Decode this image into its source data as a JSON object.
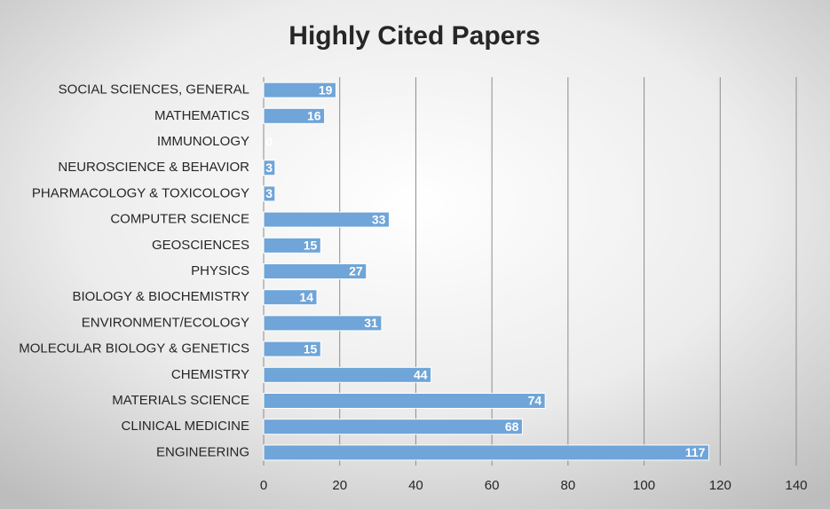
{
  "chart_data": {
    "type": "bar",
    "orientation": "horizontal",
    "title": "Highly Cited Papers",
    "categories": [
      "SOCIAL SCIENCES, GENERAL",
      "MATHEMATICS",
      "IMMUNOLOGY",
      "NEUROSCIENCE & BEHAVIOR",
      "PHARMACOLOGY & TOXICOLOGY",
      "COMPUTER SCIENCE",
      "GEOSCIENCES",
      "PHYSICS",
      "BIOLOGY & BIOCHEMISTRY",
      "ENVIRONMENT/ECOLOGY",
      "MOLECULAR BIOLOGY & GENETICS",
      "CHEMISTRY",
      "MATERIALS SCIENCE",
      "CLINICAL MEDICINE",
      "ENGINEERING"
    ],
    "values": [
      19,
      16,
      0,
      3,
      3,
      33,
      15,
      27,
      14,
      31,
      15,
      44,
      74,
      68,
      117
    ],
    "color": "#6fa5d8",
    "xlim": [
      0,
      140
    ],
    "xticks": [
      0,
      20,
      40,
      60,
      80,
      100,
      120,
      140
    ],
    "grid": true
  }
}
